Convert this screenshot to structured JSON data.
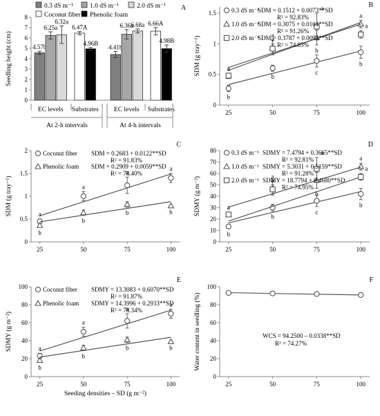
{
  "figure": {
    "panels": "A-F"
  },
  "chart_data": [
    {
      "panel": "A",
      "type": "bar",
      "ylabel": "Seedling height  (cm)",
      "ylim": [
        0,
        8
      ],
      "yticks": [
        0,
        1,
        2,
        3,
        4,
        5,
        6,
        7,
        8
      ],
      "legend": {
        "placement": "top",
        "entries": [
          {
            "name": "0.3 dS m⁻¹",
            "color": "#808080"
          },
          {
            "name": "1.0 dS m⁻¹",
            "color": "#a6a6a6"
          },
          {
            "name": "2.0 dS m⁻¹",
            "color": "#d9d9d9"
          },
          {
            "name": "Coconut fiber",
            "color": "#ffffff"
          },
          {
            "name": "Phenolic foam",
            "color": "#000000"
          }
        ]
      },
      "groups": [
        {
          "label": "EC levels",
          "interval": "At 2-h intervals",
          "bars": [
            {
              "series": "0.3 dS m⁻¹",
              "value": 4.57,
              "err": 0.15,
              "label": "4.57b"
            },
            {
              "series": "1.0 dS m⁻¹",
              "value": 6.25,
              "err": 0.35,
              "label": "6.25a"
            },
            {
              "series": "2.0 dS m⁻¹",
              "value": 6.32,
              "err": 0.85,
              "label": "6.32a"
            }
          ]
        },
        {
          "label": "Substrates",
          "interval": "At 2-h intervals",
          "bars": [
            {
              "series": "Coconut fiber",
              "value": 6.47,
              "err": 0.15,
              "label": "6.47A"
            },
            {
              "series": "Phenolic foam",
              "value": 4.96,
              "err": 0.12,
              "label": "4.96B"
            }
          ]
        },
        {
          "label": "EC levels",
          "interval": "At 4-h intervals",
          "bars": [
            {
              "series": "0.3 dS m⁻¹",
              "value": 4.41,
              "err": 0.3,
              "label": "4.41b"
            },
            {
              "series": "1.0 dS m⁻¹",
              "value": 6.36,
              "err": 0.45,
              "label": "6.36a"
            },
            {
              "series": "2.0 dS m⁻¹",
              "value": 6.68,
              "err": 0.2,
              "label": "6.68a"
            }
          ]
        },
        {
          "label": "Substrates",
          "interval": "At 4-h intervals",
          "bars": [
            {
              "series": "Coconut fiber",
              "value": 6.66,
              "err": 0.35,
              "label": "6.66A"
            },
            {
              "series": "Phenolic foam",
              "value": 4.98,
              "err": 0.35,
              "label": "4.98B"
            }
          ]
        }
      ],
      "intervals": [
        "At 2-h intervals",
        "At 4-h intervals"
      ]
    },
    {
      "panel": "B",
      "type": "scatter",
      "ylabel": "SDM (g tray⁻¹)",
      "xlim": [
        20,
        105
      ],
      "xticks": [
        25,
        50,
        75,
        100
      ],
      "ylim": [
        0,
        1.6
      ],
      "yticks": [
        0,
        0.5,
        1.0,
        1.5
      ],
      "series": [
        {
          "name": "0.3 dS m⁻¹",
          "marker": "circle",
          "fit": [
            0.1512,
            0.0073
          ],
          "x": [
            25,
            50,
            75,
            100
          ],
          "y": [
            0.27,
            0.6,
            0.72,
            0.86
          ],
          "err": [
            0.05,
            0.05,
            0.1,
            0.1
          ],
          "letters": [
            "b",
            "b",
            "c",
            "b"
          ]
        },
        {
          "name": "1.0 dS m⁻¹",
          "marker": "triangle",
          "fit": [
            0.3075,
            0.0104
          ],
          "x": [
            25,
            50,
            75,
            100
          ],
          "y": [
            0.47,
            0.94,
            1.1,
            1.32
          ],
          "err": [
            0.04,
            0.12,
            0.12,
            0.06
          ],
          "letters": [
            "a",
            "a",
            "b",
            "a"
          ]
        },
        {
          "name": "2.0 dS m⁻¹",
          "marker": "square",
          "fit": [
            0.3787,
            0.0094
          ],
          "x": [
            25,
            50,
            75,
            100
          ],
          "y": [
            0.48,
            0.92,
            1.28,
            1.15
          ],
          "err": [
            0.04,
            0.08,
            0.22,
            0.06
          ],
          "letters": [
            "a",
            "a",
            "a",
            "a"
          ]
        }
      ],
      "equations": [
        {
          "eq": "SDM = 0.1512 + 0.0073**SD",
          "r2": "R² = 92.83%"
        },
        {
          "eq": "SDM = 0.3075 + 0.0104**SD",
          "r2": "R² = 91.26%"
        },
        {
          "eq": "SDM = 0.3787 + 0.0094**SD",
          "r2": "R² = 74.83%"
        }
      ]
    },
    {
      "panel": "C",
      "type": "scatter",
      "ylabel": "SDM (g tray⁻¹)",
      "xlim": [
        20,
        105
      ],
      "xticks": [
        25,
        50,
        75,
        100
      ],
      "ylim": [
        0,
        2
      ],
      "yticks": [
        0,
        0.5,
        1.0,
        1.5,
        2.0
      ],
      "series": [
        {
          "name": "Coconut fiber",
          "marker": "circle",
          "fit": [
            0.2683,
            0.0122
          ],
          "x": [
            25,
            50,
            75,
            100
          ],
          "y": [
            0.45,
            1.0,
            1.24,
            1.4
          ],
          "err": [
            0.05,
            0.1,
            0.18,
            0.1
          ],
          "letters": [
            "a",
            "a",
            "a",
            "a"
          ]
        },
        {
          "name": "Phenolic foam",
          "marker": "triangle",
          "fit": [
            0.2909,
            0.0059
          ],
          "x": [
            25,
            50,
            75,
            100
          ],
          "y": [
            0.36,
            0.64,
            0.82,
            0.79
          ],
          "err": [
            0.04,
            0.06,
            0.06,
            0.02
          ],
          "letters": [
            "b",
            "b",
            "b",
            "b"
          ]
        }
      ],
      "equations": [
        {
          "eq": "SDM = 0.2683 + 0.0122**SD",
          "r2": "R² = 91.83%"
        },
        {
          "eq": "SDM = 0.2909 + 0.0059**SD",
          "r2": "R² = 78.40%"
        }
      ]
    },
    {
      "panel": "D",
      "type": "scatter",
      "ylabel": "SDMY (g m⁻²)",
      "xlim": [
        20,
        105
      ],
      "xticks": [
        25,
        50,
        75,
        100
      ],
      "ylim": [
        0,
        80
      ],
      "yticks": [
        0,
        10,
        20,
        30,
        40,
        50,
        60,
        70,
        80
      ],
      "series": [
        {
          "name": "0.3 dS m⁻¹",
          "marker": "circle",
          "fit": [
            7.4794,
            0.3665
          ],
          "x": [
            25,
            50,
            75,
            100
          ],
          "y": [
            13.5,
            30,
            36,
            42
          ],
          "err": [
            2,
            3,
            5,
            5
          ],
          "letters": [
            "b",
            "b",
            "c",
            "b"
          ]
        },
        {
          "name": "1.0 dS m⁻¹",
          "marker": "triangle",
          "fit": [
            5.3031,
            0.5159
          ],
          "x": [
            25,
            50,
            75,
            100
          ],
          "y": [
            24,
            47,
            54,
            66
          ],
          "err": [
            2,
            6,
            7,
            3
          ],
          "letters": [
            "a",
            "a",
            "b",
            "a"
          ]
        },
        {
          "name": "2.0 dS m⁻¹",
          "marker": "square",
          "fit": [
            18.7794,
            0.468
          ],
          "x": [
            25,
            50,
            75,
            100
          ],
          "y": [
            24,
            46,
            64,
            57
          ],
          "err": [
            2,
            4,
            10,
            3
          ],
          "letters": [
            "a",
            "a",
            "a",
            "a"
          ]
        }
      ],
      "equations": [
        {
          "eq": "SDMY = 7.4794 + 0.3665**SD",
          "r2": "R² = 92.81%"
        },
        {
          "eq": "SDMY = 5.3031 + 0.5159**SD",
          "r2": "R² = 91.28%"
        },
        {
          "eq": "SDMY = 18.7794 + 0.4680**SD",
          "r2": "R² = 74.95%"
        }
      ]
    },
    {
      "panel": "E",
      "type": "scatter",
      "ylabel": "SDMY (g m⁻²)",
      "xlabel": "Seeding densities – SD (g m⁻²)",
      "xlim": [
        20,
        105
      ],
      "xticks": [
        25,
        50,
        75,
        100
      ],
      "ylim": [
        0,
        100
      ],
      "yticks": [
        0,
        20,
        40,
        60,
        80,
        100
      ],
      "series": [
        {
          "name": "Coconut fiber",
          "marker": "circle",
          "fit": [
            13.3083,
            0.607
          ],
          "x": [
            25,
            50,
            75,
            100
          ],
          "y": [
            23,
            50,
            62,
            70
          ],
          "err": [
            3,
            5,
            8,
            5
          ],
          "letters": [
            "a",
            "a",
            "a",
            "a"
          ]
        },
        {
          "name": "Phenolic foam",
          "marker": "triangle",
          "fit": [
            14.3996,
            0.2933
          ],
          "x": [
            25,
            50,
            75,
            100
          ],
          "y": [
            18,
            32,
            41,
            39
          ],
          "err": [
            2,
            3,
            3,
            1
          ],
          "letters": [
            "b",
            "b",
            "b",
            "b"
          ]
        }
      ],
      "equations": [
        {
          "eq": "SDMY = 13.3083 + 0.6070**SD",
          "r2": "R² = 91.87%"
        },
        {
          "eq": "SDMY = 14.3996 + 0.2933**SD",
          "r2": "R² = 78.34%"
        }
      ]
    },
    {
      "panel": "F",
      "type": "scatter",
      "ylabel": "Water content in seedling  (%)",
      "xlim": [
        20,
        105
      ],
      "xticks": [
        25,
        50,
        75,
        100
      ],
      "ylim": [
        0,
        100
      ],
      "yticks": [
        0,
        20,
        40,
        60,
        80,
        100
      ],
      "series": [
        {
          "marker": "circle",
          "fit": [
            94.25,
            -0.0338
          ],
          "x": [
            25,
            50,
            75,
            100
          ],
          "y": [
            93.2,
            92.6,
            92.0,
            90.8
          ],
          "err": [
            0.3,
            0.3,
            0.3,
            0.3
          ],
          "letters": []
        }
      ],
      "equations": [
        {
          "eq": "WCS = 94.2500 – 0.0338**SD",
          "r2": "R² = 74.27%"
        }
      ]
    }
  ]
}
